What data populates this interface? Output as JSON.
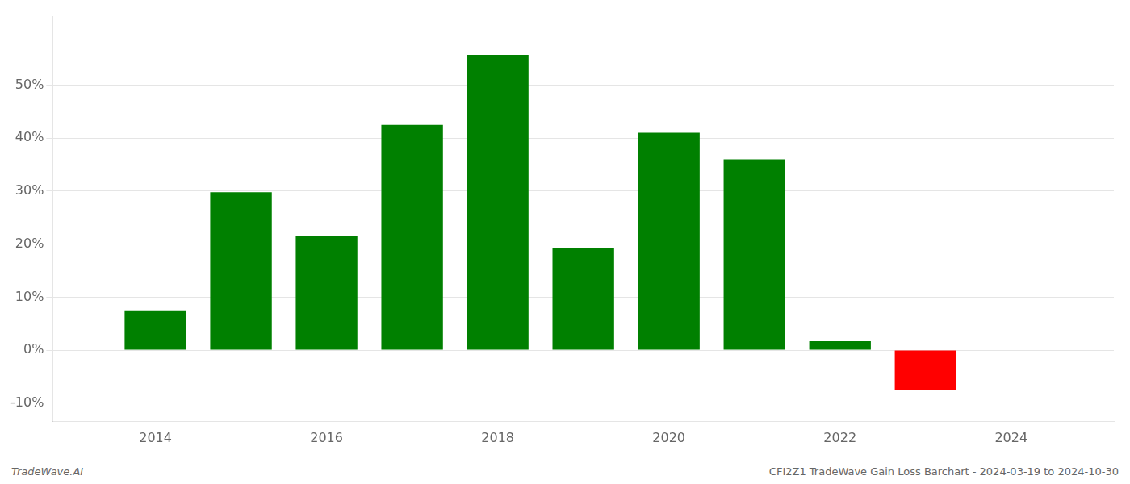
{
  "chart_data": {
    "type": "bar",
    "x": [
      2014,
      2015,
      2016,
      2017,
      2018,
      2019,
      2020,
      2021,
      2022,
      2023
    ],
    "values": [
      0.075,
      0.298,
      0.215,
      0.425,
      0.557,
      0.192,
      0.41,
      0.36,
      0.017,
      -0.076
    ],
    "colors": [
      "#008000",
      "#008000",
      "#008000",
      "#008000",
      "#008000",
      "#008000",
      "#008000",
      "#008000",
      "#008000",
      "#ff0000"
    ],
    "xlim": [
      2012.8,
      2025.2
    ],
    "xticks": [
      2014,
      2016,
      2018,
      2020,
      2022,
      2024
    ],
    "ylim": [
      -0.135,
      0.63
    ],
    "yticks": [
      {
        "value": -0.1,
        "label": "-10%"
      },
      {
        "value": 0.0,
        "label": "0%"
      },
      {
        "value": 0.1,
        "label": "10%"
      },
      {
        "value": 0.2,
        "label": "20%"
      },
      {
        "value": 0.3,
        "label": "30%"
      },
      {
        "value": 0.4,
        "label": "40%"
      },
      {
        "value": 0.5,
        "label": "50%"
      }
    ],
    "grid": true,
    "annotations": [
      "TradeWave.AI",
      "CFI2Z1 TradeWave Gain Loss Barchart - 2024-03-19 to 2024-10-30"
    ]
  }
}
